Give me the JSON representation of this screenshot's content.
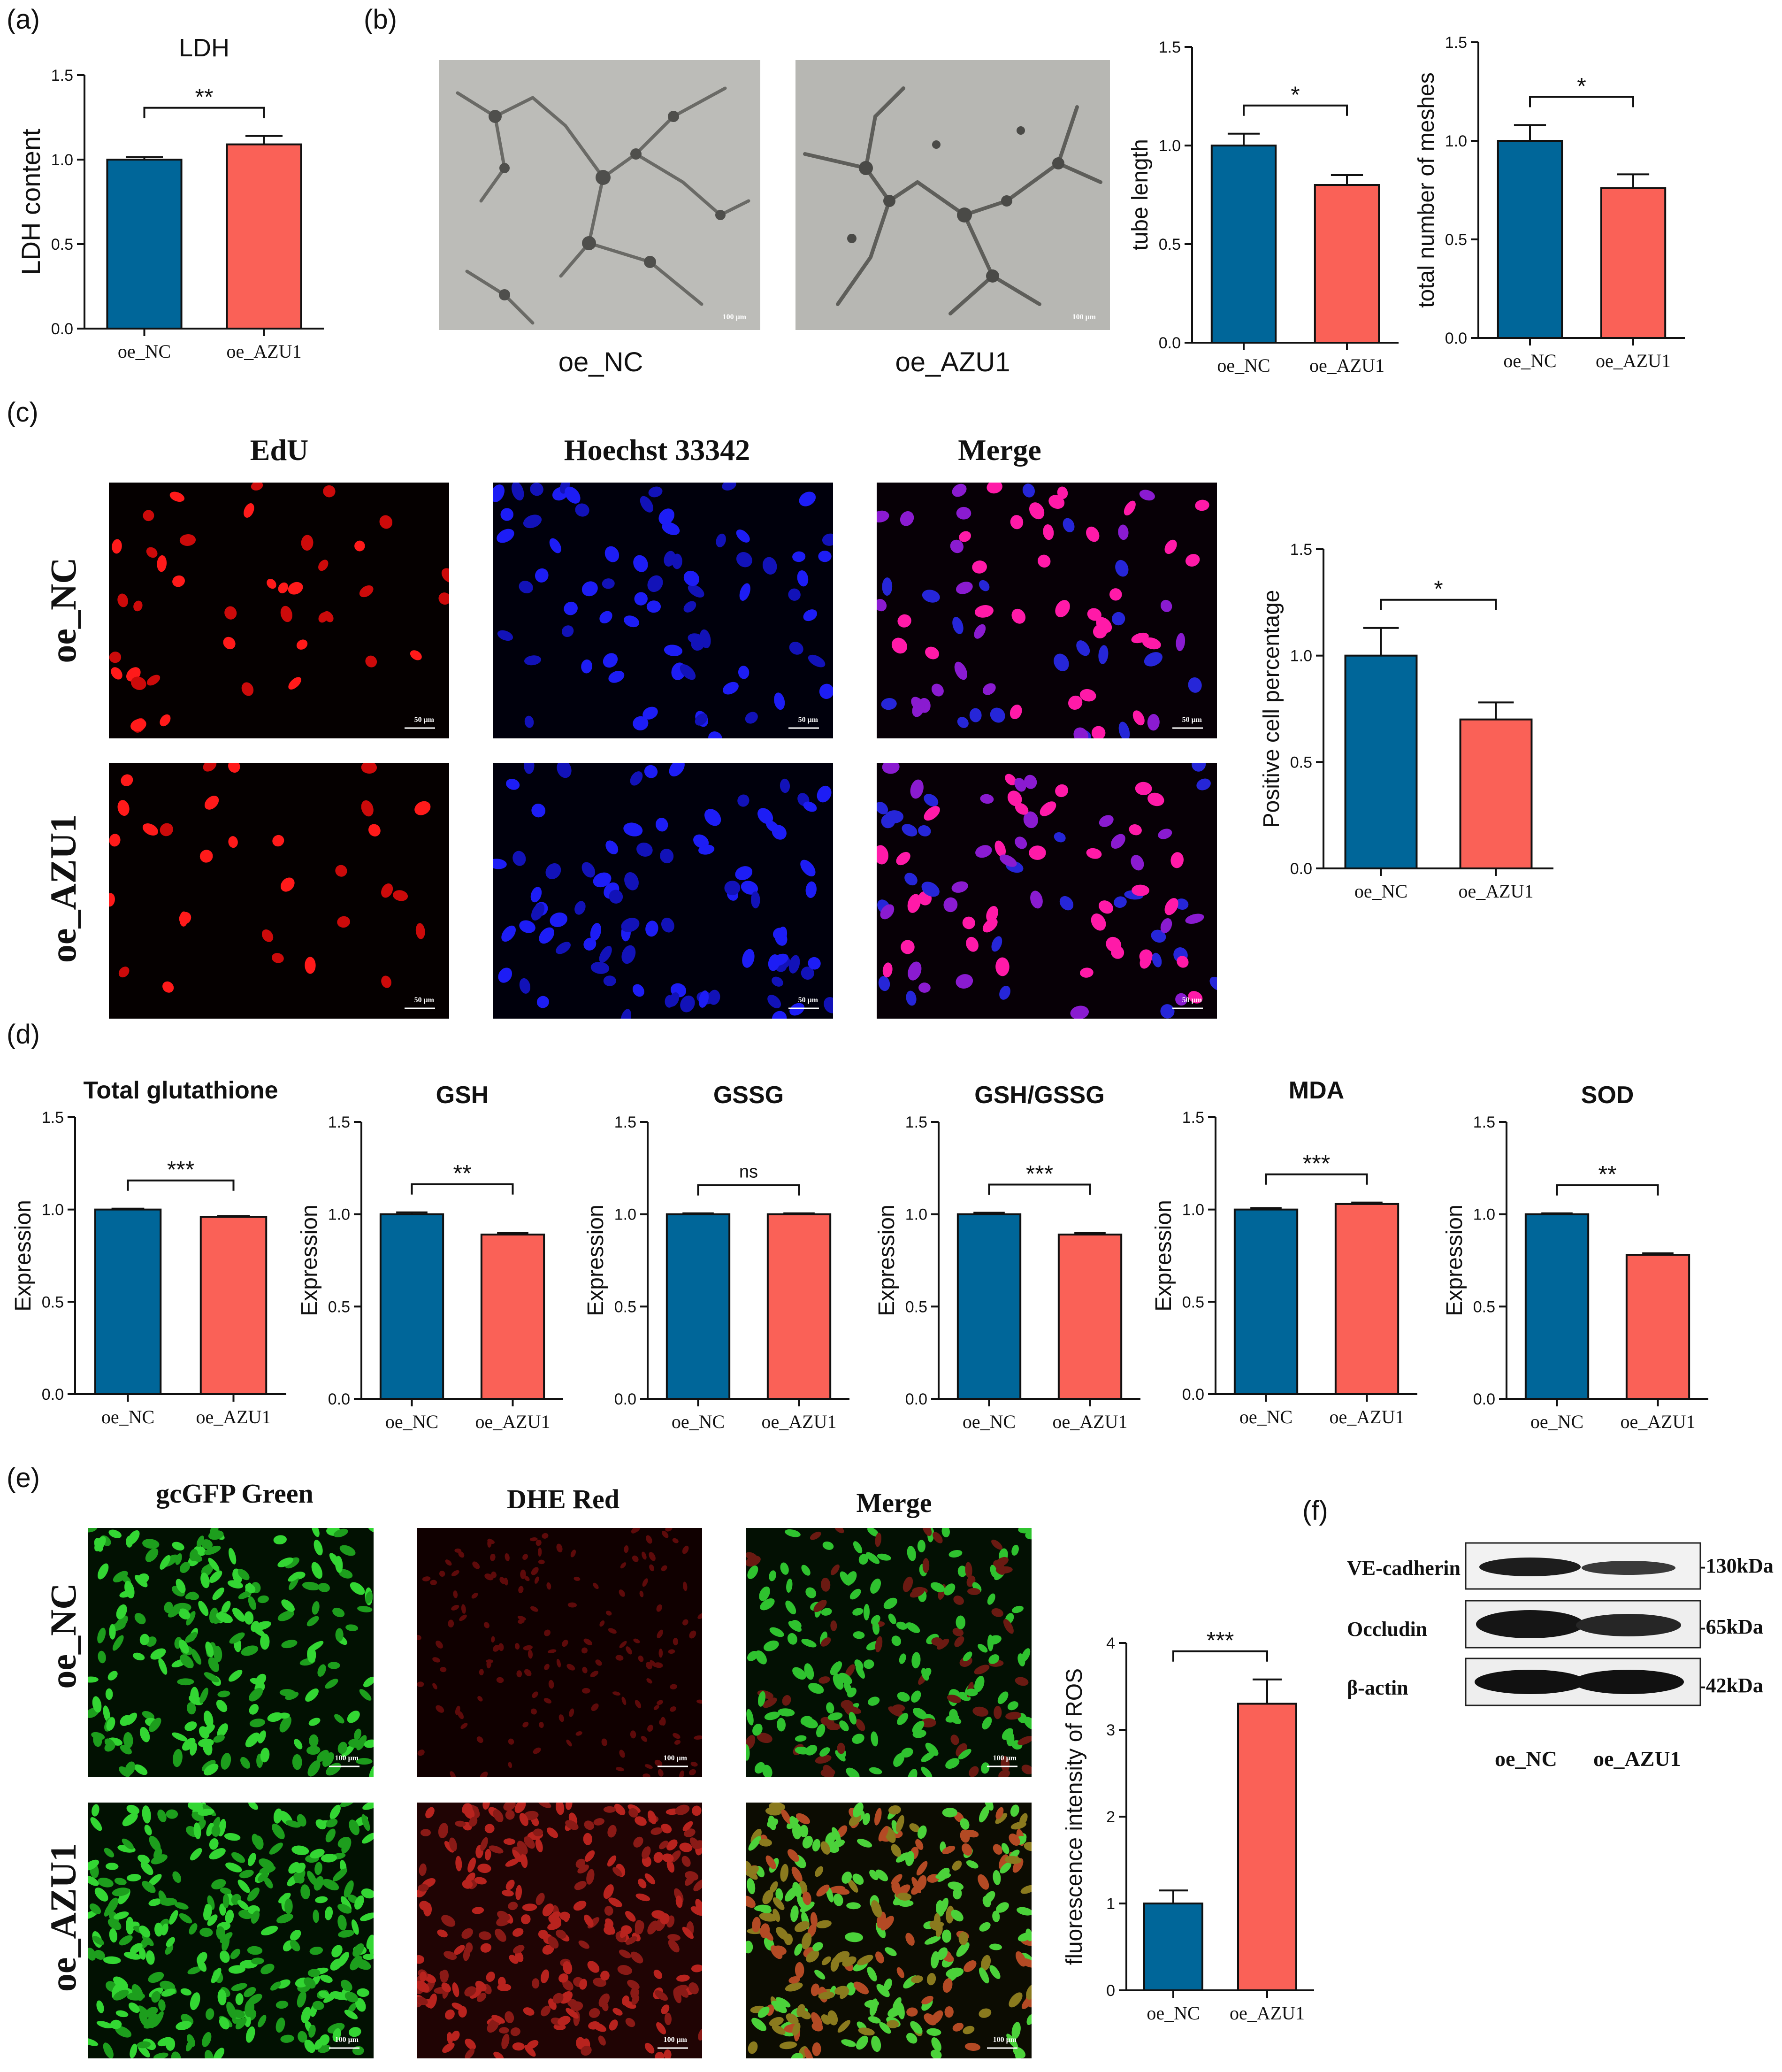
{
  "colors": {
    "nc": "#006699",
    "azu1": "#fa6157",
    "axis": "#111111"
  },
  "panels": {
    "a": {
      "letter": "(a)"
    },
    "b": {
      "letter": "(b)",
      "images": [
        {
          "label": "oe_NC",
          "scale": "100 μm"
        },
        {
          "label": "oe_AZU1",
          "scale": "100 μm"
        }
      ]
    },
    "c": {
      "letter": "(c)",
      "columns": [
        "EdU",
        "Hoechst 33342",
        "Merge"
      ],
      "rows": [
        "oe_NC",
        "oe_AZU1"
      ],
      "scale": "50 μm"
    },
    "d": {
      "letter": "(d)"
    },
    "e": {
      "letter": "(e)",
      "columns": [
        "gcGFP Green",
        "DHE Red",
        "Merge"
      ],
      "rows": [
        "oe_NC",
        "oe_AZU1"
      ],
      "scale": "100 μm"
    },
    "f": {
      "letter": "(f)",
      "bands": [
        "VE-cadherin",
        "Occludin",
        "β-actin"
      ],
      "sizes": [
        "-130kDa",
        "-65kDa",
        "-42kDa"
      ],
      "lanes": [
        "oe_NC",
        "oe_AZU1"
      ]
    }
  },
  "chart_data": [
    {
      "id": "a",
      "type": "bar",
      "title": "LDH",
      "ylabel": "LDH content",
      "ylim": [
        0,
        1.5
      ],
      "yticks": [
        "0.0",
        "0.5",
        "1.0",
        "1.5"
      ],
      "categories": [
        "oe_NC",
        "oe_AZU1"
      ],
      "values": [
        1.0,
        1.09
      ],
      "errors": [
        0.015,
        0.05
      ],
      "significance": "**"
    },
    {
      "id": "b1",
      "type": "bar",
      "title": "",
      "ylabel": "tube length",
      "ylim": [
        0,
        1.5
      ],
      "yticks": [
        "0.0",
        "0.5",
        "1.0",
        "1.5"
      ],
      "categories": [
        "oe_NC",
        "oe_AZU1"
      ],
      "values": [
        1.0,
        0.8
      ],
      "errors": [
        0.06,
        0.05
      ],
      "significance": "*"
    },
    {
      "id": "b2",
      "type": "bar",
      "title": "",
      "ylabel": "total number of meshes",
      "ylim": [
        0,
        1.5
      ],
      "yticks": [
        "0.0",
        "0.5",
        "1.0",
        "1.5"
      ],
      "categories": [
        "oe_NC",
        "oe_AZU1"
      ],
      "values": [
        1.0,
        0.76
      ],
      "errors": [
        0.08,
        0.07
      ],
      "significance": "*"
    },
    {
      "id": "c",
      "type": "bar",
      "title": "",
      "ylabel": "Positive cell percentage",
      "ylim": [
        0,
        1.5
      ],
      "yticks": [
        "0.0",
        "0.5",
        "1.0",
        "1.5"
      ],
      "categories": [
        "oe_NC",
        "oe_AZU1"
      ],
      "values": [
        1.0,
        0.7
      ],
      "errors": [
        0.13,
        0.08
      ],
      "significance": "*"
    },
    {
      "id": "d1",
      "type": "bar",
      "title": "Total glutathione",
      "ylabel": "Expression",
      "ylim": [
        0,
        1.5
      ],
      "yticks": [
        "0.0",
        "0.5",
        "1.0",
        "1.5"
      ],
      "categories": [
        "oe_NC",
        "oe_AZU1"
      ],
      "values": [
        1.0,
        0.96
      ],
      "errors": [
        0.005,
        0.005
      ],
      "significance": "***"
    },
    {
      "id": "d2",
      "type": "bar",
      "title": "GSH",
      "ylabel": "Expression",
      "ylim": [
        0,
        1.5
      ],
      "yticks": [
        "0.0",
        "0.5",
        "1.0",
        "1.5"
      ],
      "categories": [
        "oe_NC",
        "oe_AZU1"
      ],
      "values": [
        1.0,
        0.89
      ],
      "errors": [
        0.01,
        0.01
      ],
      "significance": "**"
    },
    {
      "id": "d3",
      "type": "bar",
      "title": "GSSG",
      "ylabel": "Expression",
      "ylim": [
        0,
        1.5
      ],
      "yticks": [
        "0.0",
        "0.5",
        "1.0",
        "1.5"
      ],
      "categories": [
        "oe_NC",
        "oe_AZU1"
      ],
      "values": [
        1.0,
        1.0
      ],
      "errors": [
        0.005,
        0.005
      ],
      "significance": "ns"
    },
    {
      "id": "d4",
      "type": "bar",
      "title": "GSH/GSSG",
      "ylabel": "Expression",
      "ylim": [
        0,
        1.5
      ],
      "yticks": [
        "0.0",
        "0.5",
        "1.0",
        "1.5"
      ],
      "categories": [
        "oe_NC",
        "oe_AZU1"
      ],
      "values": [
        1.0,
        0.89
      ],
      "errors": [
        0.008,
        0.01
      ],
      "significance": "***"
    },
    {
      "id": "d5",
      "type": "bar",
      "title": "MDA",
      "ylabel": "Expression",
      "ylim": [
        0,
        1.5
      ],
      "yticks": [
        "0.0",
        "0.5",
        "1.0",
        "1.5"
      ],
      "categories": [
        "oe_NC",
        "oe_AZU1"
      ],
      "values": [
        1.0,
        1.03
      ],
      "errors": [
        0.008,
        0.008
      ],
      "significance": "***"
    },
    {
      "id": "d6",
      "type": "bar",
      "title": "SOD",
      "ylabel": "Expression",
      "ylim": [
        0,
        1.5
      ],
      "yticks": [
        "0.0",
        "0.5",
        "1.0",
        "1.5"
      ],
      "categories": [
        "oe_NC",
        "oe_AZU1"
      ],
      "values": [
        1.0,
        0.78
      ],
      "errors": [
        0.005,
        0.008
      ],
      "significance": "**"
    },
    {
      "id": "e",
      "type": "bar",
      "title": "",
      "ylabel": "fluorescence intensity of ROS",
      "ylim": [
        0,
        4
      ],
      "yticks": [
        "0",
        "1",
        "2",
        "3",
        "4"
      ],
      "categories": [
        "oe_NC",
        "oe_AZU1"
      ],
      "values": [
        1.0,
        3.3
      ],
      "errors": [
        0.15,
        0.28
      ],
      "significance": "***"
    }
  ]
}
